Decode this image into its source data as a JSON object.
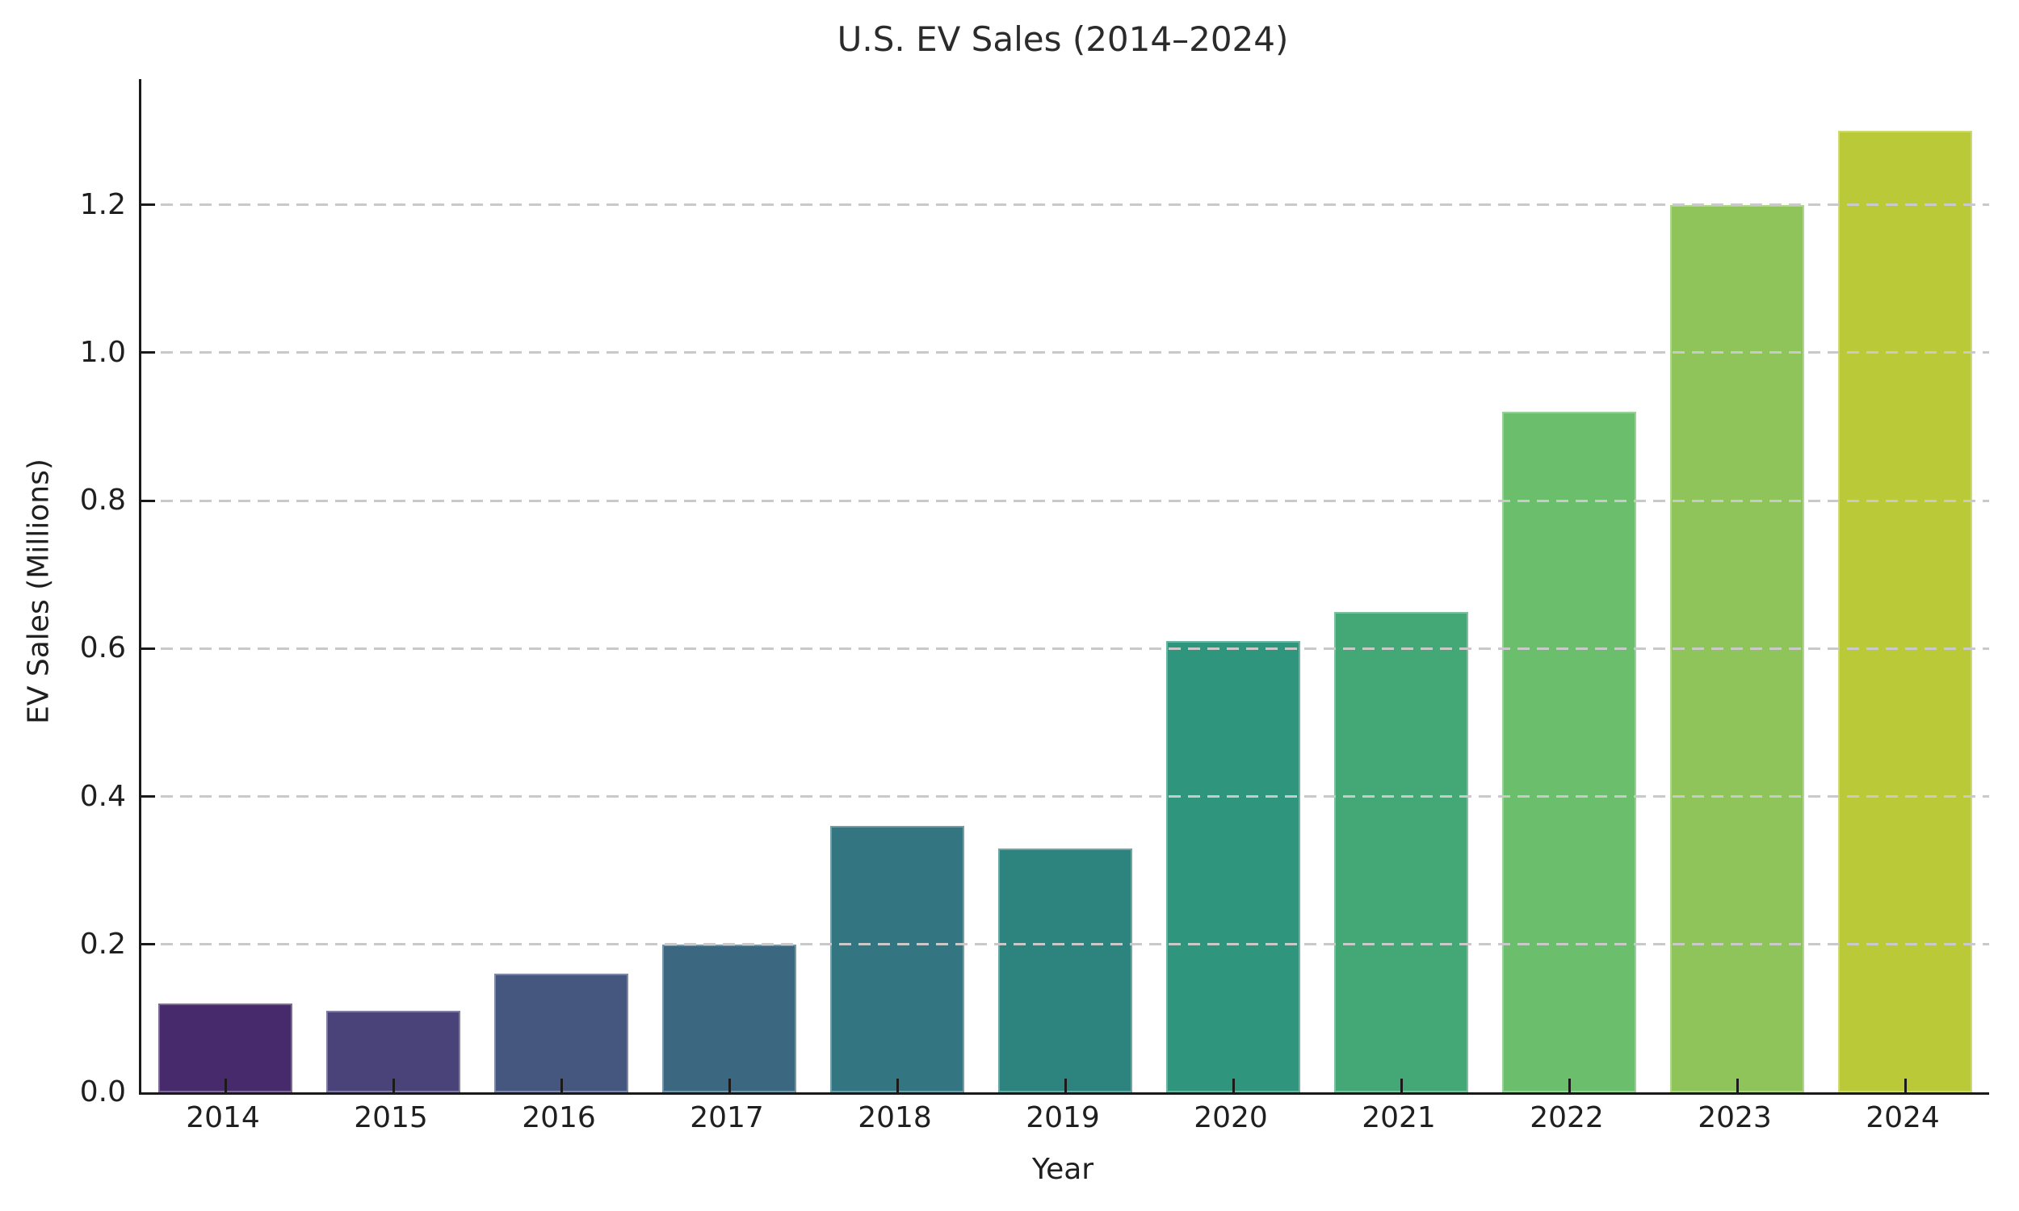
{
  "chart_data": {
    "type": "bar",
    "title": "U.S. EV Sales (2014–2024)",
    "xlabel": "Year",
    "ylabel": "EV Sales (Millions)",
    "categories": [
      "2014",
      "2015",
      "2016",
      "2017",
      "2018",
      "2019",
      "2020",
      "2021",
      "2022",
      "2023",
      "2024"
    ],
    "values": [
      0.12,
      0.11,
      0.16,
      0.2,
      0.36,
      0.33,
      0.61,
      0.65,
      0.92,
      1.2,
      1.3
    ],
    "bar_colors": [
      "#472a6b",
      "#4a4379",
      "#45577f",
      "#3c6781",
      "#337682",
      "#2d837e",
      "#2f957c",
      "#43a776",
      "#6abe6c",
      "#8ec45a",
      "#b9c937"
    ],
    "colormap": "viridis",
    "ylim": [
      0,
      1.37
    ],
    "yticks": [
      0.0,
      0.2,
      0.4,
      0.6,
      0.8,
      1.0,
      1.2
    ],
    "ytick_labels": [
      "0.0",
      "0.2",
      "0.4",
      "0.6",
      "0.8",
      "1.0",
      "1.2"
    ],
    "grid": "horizontal-dashed",
    "grid_over_bars": true,
    "legend": "none",
    "bar_width_fraction": 0.8
  },
  "colors": {
    "grid": "#c9c9c9",
    "axis": "#1a1a1a",
    "text": "#1f1f1f",
    "title": "#2b2b2b",
    "background": "#ffffff"
  }
}
